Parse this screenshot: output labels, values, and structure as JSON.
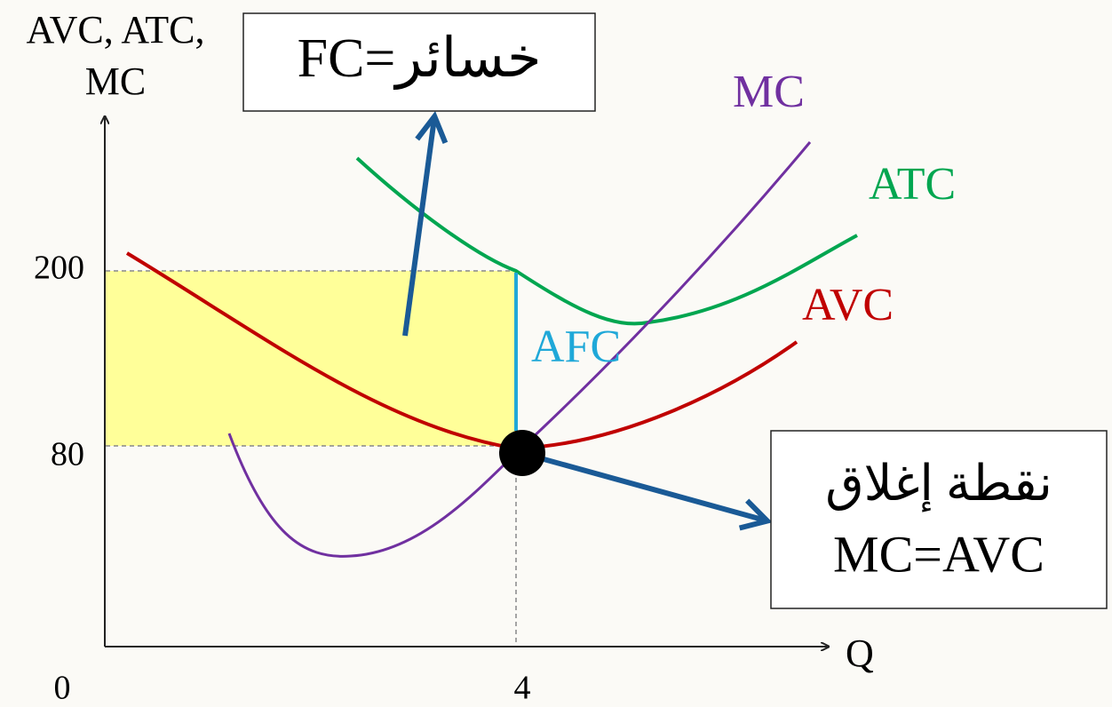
{
  "y_axis": {
    "label_lines": [
      "AVC, ATC,",
      "MC"
    ],
    "ticks": [
      "200",
      "80"
    ]
  },
  "x_axis": {
    "label": "Q",
    "ticks": [
      "0",
      "4"
    ]
  },
  "curves": {
    "mc": "MC",
    "atc": "ATC",
    "avc": "AVC",
    "afc": "AFC"
  },
  "loss_box": {
    "text": "FC=خسائر"
  },
  "shutdown_box": {
    "lines": [
      "نقطة إغلاق",
      "MC=AVC"
    ]
  }
}
